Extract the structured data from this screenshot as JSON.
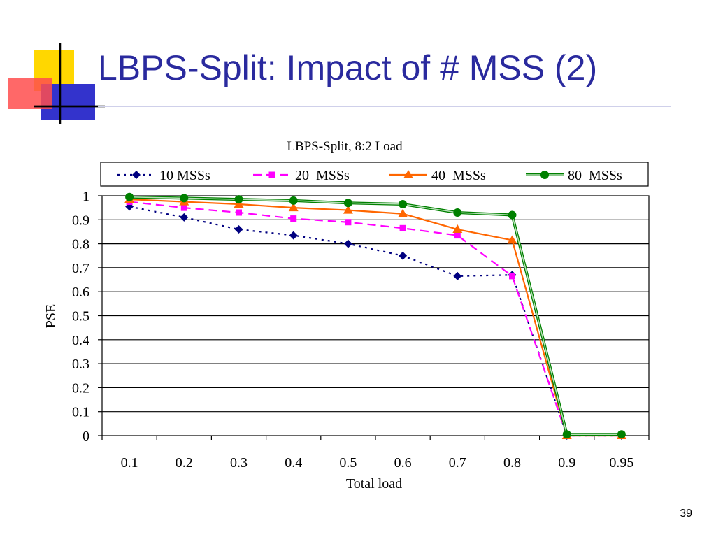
{
  "slide": {
    "title": "LBPS-Split: Impact of # MSS (2)",
    "page_number": "39",
    "title_color": "#2a2a9e"
  },
  "chart_data": {
    "type": "line",
    "title": "LBPS-Split, 8:2 Load",
    "xlabel": "Total load",
    "ylabel": "PSE",
    "categories": [
      "0.1",
      "0.2",
      "0.3",
      "0.4",
      "0.5",
      "0.6",
      "0.7",
      "0.8",
      "0.9",
      "0.95"
    ],
    "ylim": [
      0,
      1
    ],
    "yticks": [
      "0",
      "0.1",
      "0.2",
      "0.3",
      "0.4",
      "0.5",
      "0.6",
      "0.7",
      "0.8",
      "0.9",
      "1"
    ],
    "grid": true,
    "legend_position": "top",
    "series": [
      {
        "name": "10 MSSs",
        "values": [
          0.955,
          0.91,
          0.86,
          0.835,
          0.8,
          0.75,
          0.665,
          0.67,
          0.0,
          0.0
        ],
        "color": "#000080",
        "marker": "diamond",
        "line": "dotted"
      },
      {
        "name": "20  MSSs",
        "values": [
          0.975,
          0.95,
          0.93,
          0.905,
          0.89,
          0.865,
          0.835,
          0.665,
          0.0,
          0.0
        ],
        "color": "#ff00ff",
        "marker": "square",
        "line": "dashed"
      },
      {
        "name": "40  MSSs",
        "values": [
          0.985,
          0.975,
          0.965,
          0.95,
          0.94,
          0.925,
          0.86,
          0.815,
          0.0,
          0.0
        ],
        "color": "#ff6600",
        "marker": "triangle",
        "line": "solid"
      },
      {
        "name": "80  MSSs",
        "values": [
          0.995,
          0.99,
          0.985,
          0.98,
          0.97,
          0.965,
          0.93,
          0.92,
          0.005,
          0.005
        ],
        "color": "#008000",
        "marker": "circle",
        "line": "double"
      }
    ]
  }
}
